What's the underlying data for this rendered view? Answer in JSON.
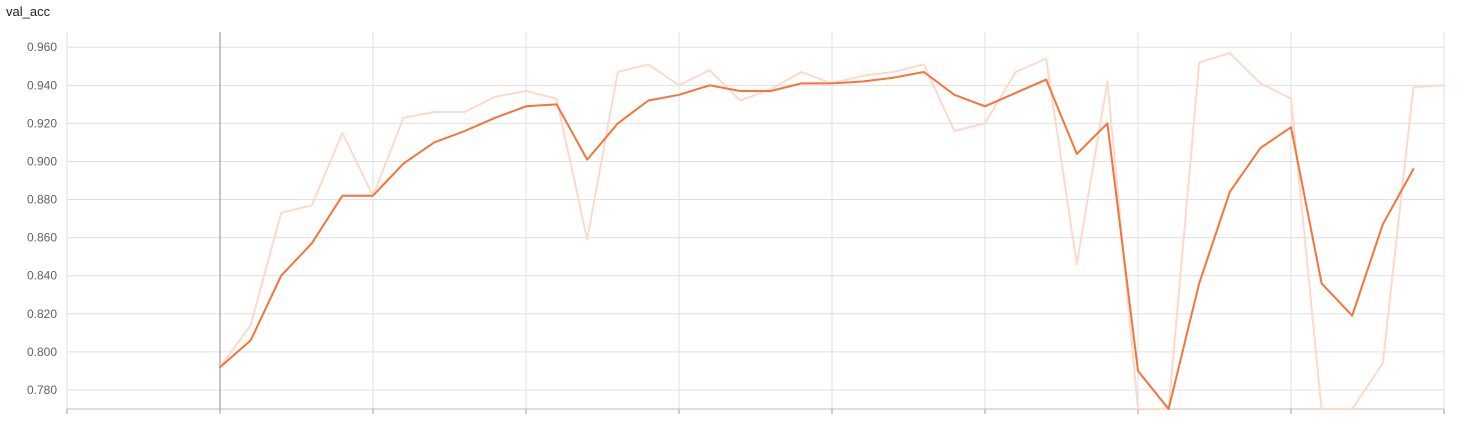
{
  "chart_data": {
    "type": "line",
    "title": "val_acc",
    "xlabel": "",
    "ylabel": "",
    "ylim": [
      0.77,
      0.968
    ],
    "xlim": [
      -4,
      41
    ],
    "y_ticks": [
      "0.780",
      "0.800",
      "0.820",
      "0.840",
      "0.860",
      "0.880",
      "0.900",
      "0.920",
      "0.940",
      "0.960"
    ],
    "y_tick_values": [
      0.78,
      0.8,
      0.82,
      0.84,
      0.86,
      0.88,
      0.9,
      0.92,
      0.94,
      0.96
    ],
    "x_gridlines": [
      -5,
      0,
      5,
      10,
      15,
      20,
      25,
      30,
      35,
      40
    ],
    "grid": true,
    "series": [
      {
        "role": "smoothed",
        "color": "#f4743b",
        "x": [
          0,
          1,
          2,
          3,
          4,
          5,
          6,
          7,
          8,
          9,
          10,
          11,
          12,
          13,
          14,
          15,
          16,
          17,
          18,
          19,
          20,
          21,
          22,
          23,
          24,
          25,
          26,
          27,
          28,
          29,
          30,
          31,
          32,
          33,
          34,
          35,
          36,
          37,
          38,
          39,
          40,
          41
        ],
        "values": [
          0.792,
          0.806,
          0.84,
          0.857,
          0.882,
          0.882,
          0.899,
          0.91,
          0.916,
          0.923,
          0.929,
          0.93,
          0.901,
          0.92,
          0.932,
          0.935,
          0.94,
          0.937,
          0.937,
          0.941,
          0.941,
          0.942,
          0.944,
          0.947,
          0.935,
          0.929,
          0.936,
          0.943,
          0.904,
          0.92,
          0.79,
          0.77,
          0.836,
          0.884,
          0.907,
          0.918,
          0.836,
          0.819,
          0.867,
          0.896,
          null,
          null
        ]
      },
      {
        "role": "raw",
        "color": "#fcd9cb",
        "x": [
          0,
          1,
          2,
          3,
          4,
          5,
          6,
          7,
          8,
          9,
          10,
          11,
          12,
          13,
          14,
          15,
          16,
          17,
          18,
          19,
          20,
          21,
          22,
          23,
          24,
          25,
          26,
          27,
          28,
          29,
          30,
          31,
          32,
          33,
          34,
          35,
          36,
          37,
          38,
          39,
          40
        ],
        "values": [
          0.792,
          0.814,
          0.873,
          0.877,
          0.915,
          0.882,
          0.923,
          0.926,
          0.926,
          0.934,
          0.937,
          0.933,
          0.859,
          0.947,
          0.951,
          0.94,
          0.948,
          0.932,
          0.938,
          0.947,
          0.941,
          0.945,
          0.947,
          0.951,
          0.916,
          0.92,
          0.947,
          0.954,
          0.846,
          0.942,
          0.77,
          0.77,
          0.952,
          0.957,
          0.941,
          0.933,
          0.77,
          0.77,
          0.794,
          0.939,
          0.94
        ]
      }
    ]
  }
}
